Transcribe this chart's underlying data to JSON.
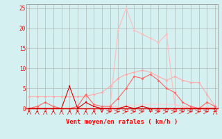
{
  "x": [
    0,
    1,
    2,
    3,
    4,
    5,
    6,
    7,
    8,
    9,
    10,
    11,
    12,
    13,
    14,
    15,
    16,
    17,
    18,
    19,
    20,
    21,
    22,
    23
  ],
  "line_pale": [
    3.0,
    3.0,
    3.0,
    3.0,
    3.0,
    3.0,
    3.0,
    3.0,
    3.5,
    4.0,
    5.5,
    7.5,
    8.5,
    9.0,
    9.5,
    9.0,
    8.0,
    7.0,
    8.0,
    7.0,
    6.5,
    6.5,
    3.5,
    0.5
  ],
  "line_med": [
    0.0,
    0.5,
    1.5,
    0.5,
    0.0,
    0.0,
    0.5,
    3.5,
    1.0,
    0.5,
    0.5,
    2.5,
    5.0,
    8.0,
    7.5,
    8.5,
    7.0,
    5.0,
    4.0,
    1.5,
    0.5,
    0.0,
    1.5,
    0.5
  ],
  "line_dark": [
    0.0,
    0.0,
    0.0,
    0.0,
    0.0,
    5.5,
    0.0,
    1.5,
    0.5,
    0.0,
    0.0,
    0.0,
    0.5,
    0.0,
    0.5,
    0.0,
    0.0,
    0.0,
    0.0,
    0.0,
    0.0,
    0.0,
    0.0,
    0.0
  ],
  "line_peak": [
    0.0,
    0.0,
    0.0,
    0.0,
    0.0,
    0.0,
    0.0,
    0.0,
    0.0,
    0.0,
    0.0,
    19.5,
    25.0,
    19.5,
    18.5,
    17.5,
    16.5,
    18.5,
    1.0,
    0.5,
    0.0,
    0.0,
    0.0,
    0.0
  ],
  "line_flat": [
    0.0,
    0.0,
    0.0,
    0.0,
    0.0,
    0.0,
    0.0,
    0.0,
    0.0,
    0.0,
    0.3,
    0.5,
    0.7,
    0.8,
    1.0,
    1.0,
    1.0,
    1.0,
    1.0,
    0.5,
    0.3,
    0.3,
    0.3,
    0.3
  ],
  "color_pale": "#ffaaaa",
  "color_med": "#ff6666",
  "color_dark": "#dd0000",
  "color_peak": "#ffbbbb",
  "color_flat": "#ffcccc",
  "color_spine_bottom": "#cc0000",
  "bg_color": "#d4f0f0",
  "grid_color": "#aaaaaa",
  "xlabel": "Vent moyen/en rafales ( km/h )",
  "ylim": [
    0,
    26
  ],
  "xlim": [
    -0.3,
    23.3
  ],
  "yticks": [
    0,
    5,
    10,
    15,
    20,
    25
  ],
  "xticks": [
    0,
    1,
    2,
    3,
    4,
    5,
    6,
    7,
    8,
    9,
    10,
    11,
    12,
    13,
    14,
    15,
    16,
    17,
    18,
    19,
    20,
    21,
    22,
    23
  ],
  "arrow_down_indices": [
    0,
    1,
    2,
    3,
    4,
    5,
    6,
    7,
    8,
    23
  ],
  "arrow_right_indices": [
    10,
    11,
    12,
    13,
    14,
    16,
    17,
    18,
    19,
    20,
    21,
    22
  ],
  "arrow_downleft_indices": [
    9,
    15
  ]
}
